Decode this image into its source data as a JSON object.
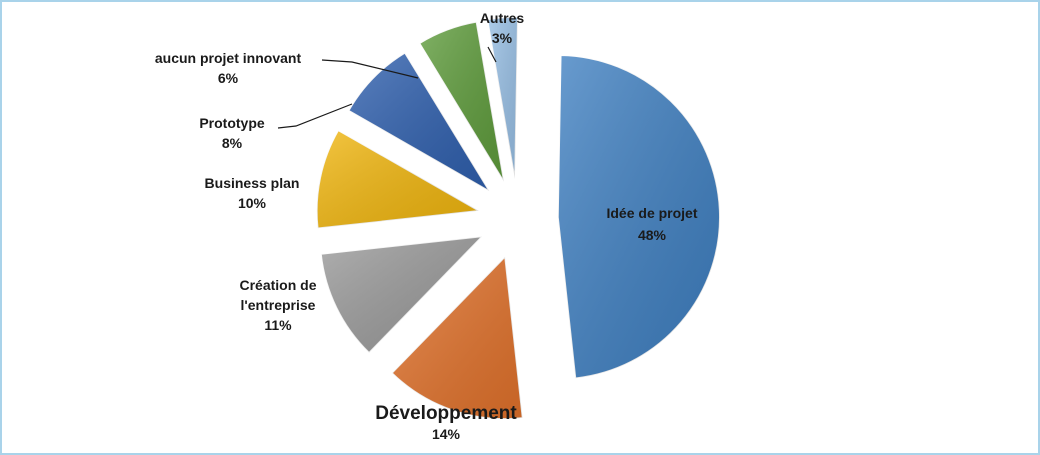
{
  "chart_data": {
    "type": "pie",
    "title": "",
    "exploded": true,
    "legend": "none",
    "categories": [
      "Idée de projet",
      "Développement",
      "Création de l'entreprise",
      "Business plan",
      "Prototype",
      "aucun projet innovant",
      "Autres"
    ],
    "values": [
      48,
      14,
      11,
      10,
      8,
      6,
      3
    ],
    "value_labels": [
      "48%",
      "14%",
      "11%",
      "10%",
      "8%",
      "6%",
      "3%"
    ],
    "label_lines": {
      "Idée de projet": [
        "Idée de projet"
      ],
      "Développement": [
        "Développement"
      ],
      "Création de l'entreprise": [
        "Création de",
        "l'entreprise"
      ],
      "Business plan": [
        "Business plan"
      ],
      "Prototype": [
        "Prototype"
      ],
      "aucun projet innovant": [
        "aucun projet innovant"
      ],
      "Autres": [
        "Autres"
      ]
    },
    "colors": [
      "#3e7fc1",
      "#e2722b",
      "#9a9a9a",
      "#f1b60d",
      "#2e5fae",
      "#5e9c3b",
      "#98c0e6"
    ]
  }
}
